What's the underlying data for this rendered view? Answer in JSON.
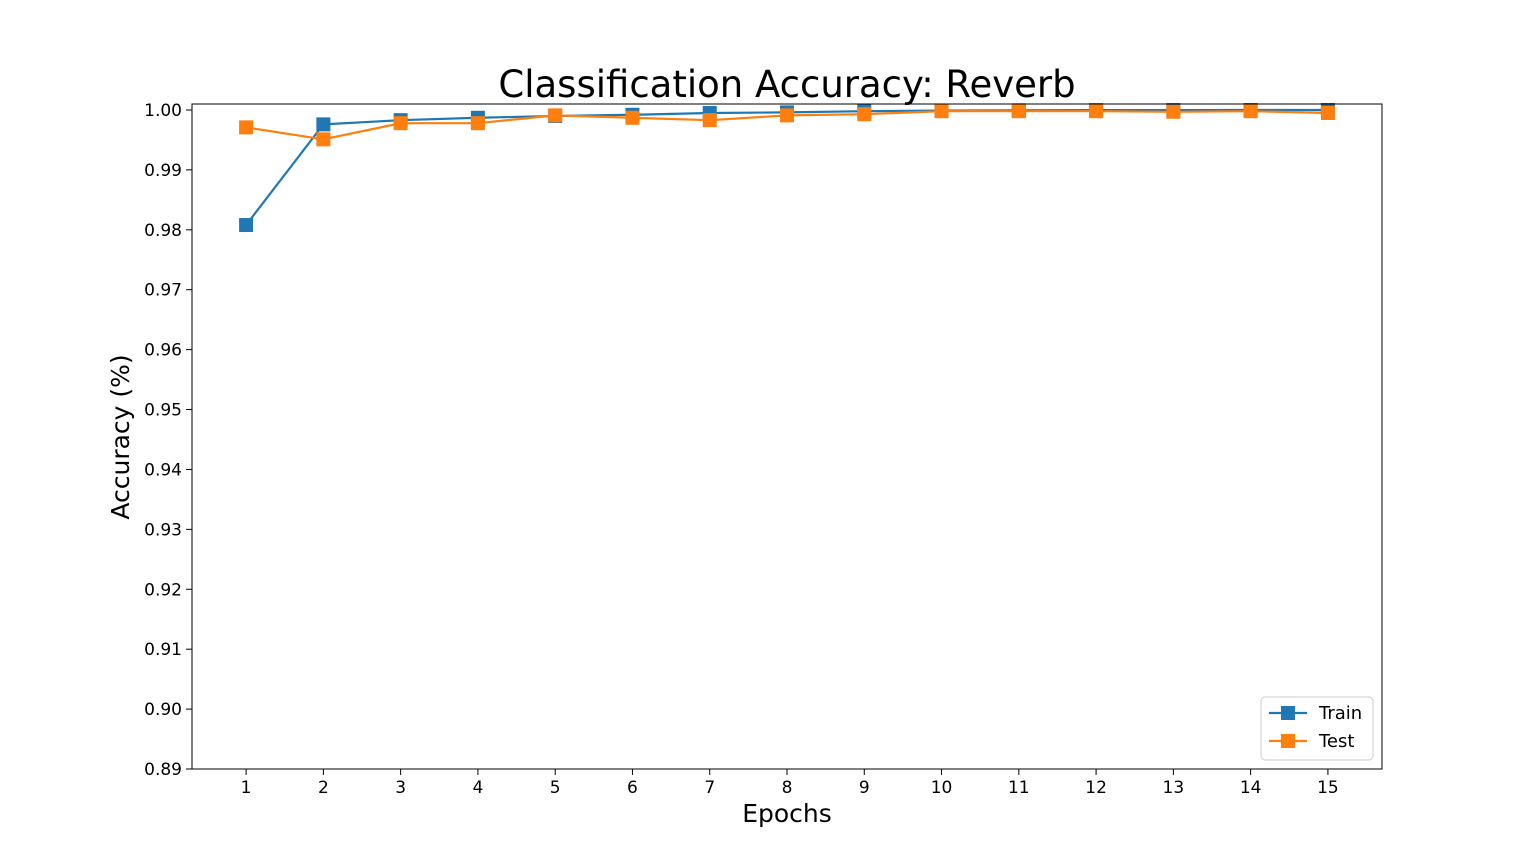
{
  "chart_data": {
    "type": "line",
    "title": "Classification Accuracy: Reverb",
    "xlabel": "Epochs",
    "ylabel": "Accuracy (%)",
    "x": [
      1,
      2,
      3,
      4,
      5,
      6,
      7,
      8,
      9,
      10,
      11,
      12,
      13,
      14,
      15
    ],
    "xlim": [
      0.3,
      15.7
    ],
    "ylim": [
      0.89,
      1.001
    ],
    "yticks": [
      "0.89",
      "0.90",
      "0.91",
      "0.92",
      "0.93",
      "0.94",
      "0.95",
      "0.96",
      "0.97",
      "0.98",
      "0.99",
      "1.00"
    ],
    "grid": false,
    "legend_position": "lower-right",
    "series": [
      {
        "name": "Train",
        "color": "#1f77b4",
        "marker": "square",
        "values": [
          0.9808,
          0.9976,
          0.9983,
          0.9987,
          0.999,
          0.9992,
          0.9995,
          0.9996,
          0.9998,
          0.9999,
          0.99995,
          0.99998,
          0.99999,
          1.0,
          1.0
        ]
      },
      {
        "name": "Test",
        "color": "#ff7f0e",
        "marker": "square",
        "values": [
          0.9971,
          0.9951,
          0.9978,
          0.9978,
          0.9991,
          0.9987,
          0.9983,
          0.9991,
          0.9993,
          0.9998,
          0.9998,
          0.9998,
          0.9997,
          0.9998,
          0.9995
        ]
      }
    ]
  }
}
